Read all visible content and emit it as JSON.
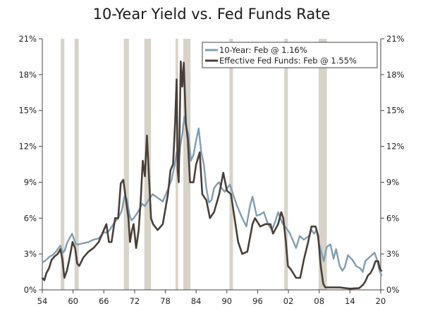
{
  "chart_data": {
    "type": "line",
    "title": "10-Year Yield vs. Fed Funds Rate",
    "xlabel": "",
    "ylabel": "",
    "xlim": [
      1954,
      2020
    ],
    "ylim": [
      0,
      21
    ],
    "x_ticks": [
      1954,
      1960,
      1966,
      1972,
      1978,
      1984,
      1990,
      1996,
      2002,
      2008,
      2014,
      2020
    ],
    "x_tick_labels": [
      "54",
      "60",
      "66",
      "72",
      "78",
      "84",
      "90",
      "96",
      "02",
      "08",
      "14",
      "20"
    ],
    "y_ticks": [
      0,
      3,
      6,
      9,
      12,
      15,
      18,
      21
    ],
    "y_tick_labels": [
      "0%",
      "3%",
      "6%",
      "9%",
      "12%",
      "15%",
      "18%",
      "21%"
    ],
    "legend_position": "top-right",
    "colors": {
      "ten_year": "#7f9db3",
      "fed_funds": "#4a3f38",
      "recession": "#d8d3c8"
    },
    "recessions": [
      [
        1957.6,
        1958.3
      ],
      [
        1960.3,
        1961.1
      ],
      [
        1969.9,
        1970.9
      ],
      [
        1973.9,
        1975.2
      ],
      [
        1980.0,
        1980.5
      ],
      [
        1981.5,
        1982.9
      ],
      [
        1990.5,
        1991.2
      ],
      [
        2001.2,
        2001.9
      ],
      [
        2007.9,
        2009.5
      ]
    ],
    "series": [
      {
        "name": "10-Year: Feb @ 1.16%",
        "x": [
          1954.0,
          1954.5,
          1955.0,
          1955.5,
          1956.0,
          1956.5,
          1957.0,
          1957.5,
          1958.0,
          1958.4,
          1958.8,
          1959.3,
          1959.8,
          1960.2,
          1960.6,
          1961.0,
          1962.0,
          1963.0,
          1964.0,
          1965.0,
          1966.0,
          1966.7,
          1967.3,
          1968.0,
          1968.8,
          1969.5,
          1970.0,
          1970.5,
          1971.0,
          1971.4,
          1972.0,
          1972.5,
          1973.0,
          1973.5,
          1974.0,
          1974.7,
          1975.5,
          1976.5,
          1977.5,
          1978.5,
          1979.2,
          1979.8,
          1980.2,
          1980.5,
          1980.9,
          1981.3,
          1981.7,
          1982.0,
          1982.5,
          1983.0,
          1983.5,
          1984.0,
          1984.5,
          1985.0,
          1985.5,
          1986.0,
          1986.5,
          1987.0,
          1987.5,
          1988.0,
          1988.5,
          1989.0,
          1989.6,
          1990.0,
          1990.6,
          1991.2,
          1992.0,
          1993.0,
          1993.8,
          1994.5,
          1995.0,
          1995.8,
          1996.5,
          1997.2,
          1998.0,
          1998.8,
          1999.5,
          2000.0,
          2000.8,
          2001.5,
          2002.2,
          2003.0,
          2003.5,
          2004.2,
          2005.0,
          2006.0,
          2006.5,
          2007.0,
          2007.5,
          2008.0,
          2008.9,
          2009.5,
          2010.2,
          2010.8,
          2011.3,
          2012.0,
          2012.5,
          2013.0,
          2013.6,
          2014.5,
          2015.2,
          2016.0,
          2016.5,
          2017.0,
          2018.0,
          2018.8,
          2019.3,
          2019.8,
          2020.2
        ],
        "values": [
          2.3,
          2.4,
          2.6,
          2.8,
          2.9,
          3.1,
          3.4,
          3.7,
          3.1,
          3.3,
          3.9,
          4.3,
          4.7,
          4.2,
          3.8,
          3.8,
          3.9,
          4.0,
          4.2,
          4.3,
          4.8,
          4.8,
          5.1,
          5.6,
          6.0,
          6.6,
          7.8,
          7.6,
          6.3,
          5.8,
          6.1,
          6.4,
          6.8,
          7.2,
          7.0,
          7.5,
          8.0,
          7.7,
          7.4,
          8.4,
          9.2,
          10.4,
          11.5,
          10.0,
          12.0,
          13.0,
          14.5,
          13.8,
          13.0,
          10.8,
          11.3,
          12.5,
          13.5,
          11.5,
          10.5,
          8.5,
          7.3,
          7.5,
          8.5,
          8.8,
          9.0,
          8.5,
          8.2,
          8.5,
          8.8,
          8.0,
          7.0,
          6.0,
          5.3,
          7.0,
          7.8,
          6.2,
          6.3,
          6.5,
          5.5,
          5.0,
          5.8,
          6.5,
          5.6,
          5.2,
          4.8,
          4.0,
          3.5,
          4.5,
          4.2,
          4.5,
          5.0,
          4.7,
          5.0,
          3.8,
          2.4,
          3.6,
          3.8,
          2.6,
          3.4,
          2.0,
          1.6,
          1.9,
          2.9,
          2.5,
          2.0,
          1.8,
          1.5,
          2.4,
          2.8,
          3.1,
          2.5,
          1.6,
          1.16
        ]
      },
      {
        "name": "Effective Fed Funds: Feb @ 1.55%",
        "x": [
          1954.0,
          1954.4,
          1954.8,
          1955.3,
          1955.8,
          1956.4,
          1957.0,
          1957.5,
          1957.9,
          1958.3,
          1958.8,
          1959.3,
          1959.9,
          1960.4,
          1960.8,
          1961.2,
          1962.0,
          1963.0,
          1964.0,
          1965.0,
          1966.0,
          1966.5,
          1967.0,
          1967.5,
          1968.2,
          1968.8,
          1969.3,
          1969.8,
          1970.3,
          1970.8,
          1971.1,
          1971.5,
          1971.8,
          1972.3,
          1972.8,
          1973.2,
          1973.6,
          1974.0,
          1974.4,
          1974.8,
          1975.2,
          1975.6,
          1976.5,
          1977.5,
          1978.5,
          1979.0,
          1979.5,
          1979.9,
          1980.2,
          1980.4,
          1980.6,
          1981.0,
          1981.3,
          1981.6,
          1982.0,
          1982.4,
          1982.8,
          1983.5,
          1984.0,
          1984.7,
          1985.2,
          1986.0,
          1986.7,
          1987.5,
          1988.5,
          1989.3,
          1990.0,
          1990.8,
          1991.5,
          1992.2,
          1993.0,
          1994.0,
          1995.0,
          1995.5,
          1996.5,
          1997.5,
          1998.5,
          1999.0,
          2000.0,
          2000.6,
          2001.0,
          2001.5,
          2001.9,
          2002.5,
          2003.5,
          2004.3,
          2005.0,
          2005.8,
          2006.5,
          2007.3,
          2007.8,
          2008.3,
          2008.8,
          2009.2,
          2010.0,
          2012.0,
          2014.0,
          2015.8,
          2016.5,
          2017.0,
          2017.5,
          2018.0,
          2018.5,
          2019.0,
          2019.5,
          2019.8,
          2020.2
        ],
        "values": [
          1.0,
          0.8,
          1.4,
          1.8,
          2.5,
          2.8,
          3.0,
          3.4,
          2.6,
          1.0,
          1.6,
          2.6,
          4.0,
          3.5,
          2.2,
          2.0,
          2.7,
          3.2,
          3.5,
          4.0,
          5.0,
          5.5,
          4.0,
          4.0,
          6.0,
          6.0,
          8.9,
          9.2,
          7.6,
          6.0,
          4.0,
          5.0,
          5.5,
          3.5,
          5.0,
          7.5,
          10.8,
          9.5,
          12.9,
          9.5,
          6.0,
          5.5,
          5.0,
          5.5,
          8.0,
          10.0,
          10.5,
          14.0,
          17.6,
          10.0,
          9.0,
          19.1,
          17.0,
          19.0,
          14.0,
          12.5,
          9.0,
          9.0,
          10.5,
          11.5,
          8.0,
          7.5,
          6.0,
          6.5,
          8.0,
          9.8,
          8.3,
          8.0,
          6.0,
          4.0,
          3.0,
          3.2,
          5.5,
          6.0,
          5.3,
          5.5,
          5.5,
          4.7,
          5.5,
          6.5,
          6.0,
          4.0,
          2.0,
          1.7,
          1.0,
          1.0,
          2.5,
          3.9,
          5.3,
          5.3,
          4.5,
          2.0,
          0.5,
          0.2,
          0.2,
          0.2,
          0.1,
          0.15,
          0.4,
          0.7,
          1.2,
          1.4,
          1.8,
          2.4,
          2.4,
          1.8,
          1.55
        ]
      }
    ]
  }
}
